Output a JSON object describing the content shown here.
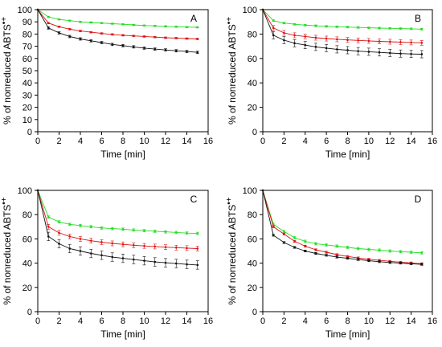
{
  "colors": {
    "green": "#22dd22",
    "red": "#dd1111",
    "black": "#111111"
  },
  "chart_data": [
    {
      "panel": "A",
      "type": "line",
      "xlabel": "Time [min]",
      "ylabel_main": "% of nonreduced ABTS",
      "ylabel_sup": "•+",
      "xlim": [
        0,
        16
      ],
      "ylim": [
        0,
        100
      ],
      "xticks": [
        0,
        2,
        4,
        6,
        8,
        10,
        12,
        14,
        16
      ],
      "yticks": [
        0,
        10,
        20,
        30,
        40,
        50,
        60,
        70,
        80,
        90,
        100
      ],
      "grid": false,
      "x": [
        0,
        1,
        2,
        3,
        4,
        5,
        6,
        7,
        8,
        9,
        10,
        11,
        12,
        13,
        14,
        15
      ],
      "series": [
        {
          "color": "green",
          "values": [
            100,
            94,
            92,
            91,
            90,
            89.5,
            89,
            88.5,
            88,
            87.5,
            87,
            86.7,
            86.3,
            86,
            85.7,
            85.5
          ],
          "errors": [
            0,
            0.5,
            0.5,
            0.5,
            0.5,
            0.5,
            0.5,
            0.5,
            0.5,
            0.5,
            0.5,
            0.5,
            0.5,
            0.5,
            0.5,
            0.5
          ]
        },
        {
          "color": "red",
          "values": [
            100,
            89,
            86,
            84,
            82.5,
            81.5,
            80.5,
            79.7,
            79,
            78.5,
            78,
            77.5,
            77,
            76.7,
            76.3,
            76
          ],
          "errors": [
            0,
            0.6,
            0.6,
            0.6,
            0.6,
            0.6,
            0.6,
            0.6,
            0.6,
            0.6,
            0.6,
            0.6,
            0.6,
            0.6,
            0.6,
            0.6
          ]
        },
        {
          "color": "black",
          "values": [
            100,
            85,
            81,
            78,
            76,
            74.5,
            73,
            71.5,
            70.5,
            69.5,
            68.5,
            67.7,
            67,
            66.3,
            65.7,
            65
          ],
          "errors": [
            0,
            1,
            1,
            1,
            1,
            1,
            1,
            1,
            1,
            1,
            1,
            1,
            1,
            1,
            1,
            1
          ]
        }
      ]
    },
    {
      "panel": "B",
      "type": "line",
      "xlabel": "Time [min]",
      "ylabel_main": "% of nonreduced ABTS",
      "ylabel_sup": "•+",
      "xlim": [
        0,
        16
      ],
      "ylim": [
        0,
        100
      ],
      "xticks": [
        0,
        2,
        4,
        6,
        8,
        10,
        12,
        14,
        16
      ],
      "yticks": [
        0,
        20,
        40,
        60,
        80,
        100
      ],
      "grid": false,
      "x": [
        0,
        1,
        2,
        3,
        4,
        5,
        6,
        7,
        8,
        9,
        10,
        11,
        12,
        13,
        14,
        15
      ],
      "series": [
        {
          "color": "green",
          "values": [
            100,
            91,
            89,
            88,
            87.3,
            86.8,
            86.3,
            86,
            85.7,
            85.4,
            85.1,
            84.9,
            84.7,
            84.5,
            84.3,
            84
          ],
          "errors": [
            0,
            0.7,
            0.7,
            0.7,
            0.7,
            0.7,
            0.7,
            0.7,
            0.7,
            0.7,
            0.7,
            0.7,
            0.7,
            0.7,
            0.7,
            0.7
          ]
        },
        {
          "color": "red",
          "values": [
            100,
            85,
            81,
            79,
            78,
            77,
            76.3,
            75.7,
            75.2,
            74.8,
            74.4,
            74,
            73.7,
            73.4,
            73.1,
            72.8
          ],
          "errors": [
            0,
            2,
            2,
            2,
            2,
            2,
            2,
            2,
            2,
            2,
            2,
            2,
            2,
            2,
            2,
            2
          ]
        },
        {
          "color": "black",
          "values": [
            100,
            79,
            75,
            72.5,
            71,
            69.5,
            68.5,
            67.5,
            66.8,
            66,
            65.5,
            65,
            64.5,
            64,
            63.7,
            63.5
          ],
          "errors": [
            0,
            3,
            3,
            3,
            3,
            3,
            3,
            3,
            3,
            3,
            3,
            3,
            3,
            3,
            3,
            3
          ]
        }
      ]
    },
    {
      "panel": "C",
      "type": "line",
      "xlabel": "Time [min]",
      "ylabel_main": "% of nonreduced ABTS",
      "ylabel_sup": "•+",
      "xlim": [
        0,
        16
      ],
      "ylim": [
        0,
        100
      ],
      "xticks": [
        0,
        2,
        4,
        6,
        8,
        10,
        12,
        14,
        16
      ],
      "yticks": [
        0,
        20,
        40,
        60,
        80,
        100
      ],
      "grid": false,
      "x": [
        0,
        1,
        2,
        3,
        4,
        5,
        6,
        7,
        8,
        9,
        10,
        11,
        12,
        13,
        14,
        15
      ],
      "series": [
        {
          "color": "green",
          "values": [
            100,
            78,
            74,
            72,
            71,
            70,
            69,
            68.5,
            68,
            67.3,
            66.8,
            66.3,
            65.8,
            65.3,
            64.8,
            64.5
          ],
          "errors": [
            0,
            1,
            1,
            1,
            1,
            1,
            1,
            1,
            1,
            1,
            1,
            1,
            1,
            1,
            1,
            1
          ]
        },
        {
          "color": "red",
          "values": [
            100,
            70,
            65,
            62,
            60,
            58.5,
            57.3,
            56.3,
            55.5,
            54.8,
            54.2,
            53.7,
            53.2,
            52.8,
            52.4,
            52
          ],
          "errors": [
            0,
            2,
            2,
            2,
            2,
            2,
            2,
            2,
            2,
            2,
            2,
            2,
            2,
            2,
            2,
            2
          ]
        },
        {
          "color": "black",
          "values": [
            100,
            62,
            56,
            52,
            50,
            48,
            46.5,
            45,
            44,
            43,
            42,
            41,
            40.3,
            39.7,
            39,
            38.5
          ],
          "errors": [
            0,
            3.5,
            3.5,
            3.5,
            3.5,
            3.5,
            3.5,
            3.5,
            3.5,
            3.5,
            3.5,
            3.5,
            3.5,
            3.5,
            3.5,
            3.5
          ]
        }
      ]
    },
    {
      "panel": "D",
      "type": "line",
      "xlabel": "Time [min]",
      "ylabel_main": "% of nonreduced ABTS",
      "ylabel_sup": "•+",
      "xlim": [
        0,
        16
      ],
      "ylim": [
        0,
        100
      ],
      "xticks": [
        0,
        2,
        4,
        6,
        8,
        10,
        12,
        14,
        16
      ],
      "yticks": [
        0,
        20,
        40,
        60,
        80,
        100
      ],
      "grid": false,
      "x": [
        0,
        1,
        2,
        3,
        4,
        5,
        6,
        7,
        8,
        9,
        10,
        11,
        12,
        13,
        14,
        15
      ],
      "series": [
        {
          "color": "green",
          "values": [
            100,
            72,
            66,
            61,
            58,
            56,
            55,
            54,
            53,
            52,
            51.3,
            50.7,
            50,
            49.5,
            49,
            48.5
          ],
          "errors": [
            0,
            1,
            1,
            1,
            1,
            1,
            1,
            1,
            1,
            1,
            1,
            1,
            1,
            1,
            1,
            1
          ]
        },
        {
          "color": "red",
          "values": [
            100,
            70,
            64,
            58,
            54,
            51,
            49,
            47,
            45.5,
            44.3,
            43.2,
            42.3,
            41.5,
            40.8,
            40.2,
            39.5
          ],
          "errors": [
            0,
            0.8,
            0.8,
            0.8,
            0.8,
            0.8,
            0.8,
            0.8,
            0.8,
            0.8,
            0.8,
            0.8,
            0.8,
            0.8,
            0.8,
            0.8
          ]
        },
        {
          "color": "black",
          "values": [
            100,
            63,
            57,
            53,
            50,
            48,
            46.5,
            45,
            44,
            43,
            42,
            41.2,
            40.5,
            40,
            39.5,
            39
          ],
          "errors": [
            0,
            0.8,
            0.8,
            0.8,
            0.8,
            0.8,
            0.8,
            0.8,
            0.8,
            0.8,
            0.8,
            0.8,
            0.8,
            0.8,
            0.8,
            0.8
          ]
        }
      ]
    }
  ]
}
